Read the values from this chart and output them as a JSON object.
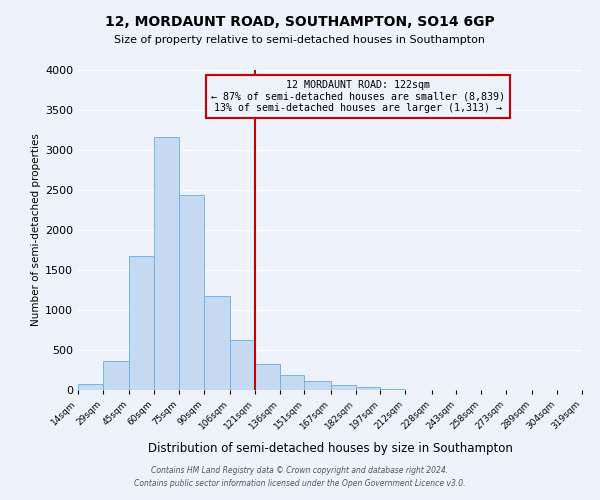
{
  "title": "12, MORDAUNT ROAD, SOUTHAMPTON, SO14 6GP",
  "subtitle": "Size of property relative to semi-detached houses in Southampton",
  "xlabel": "Distribution of semi-detached houses by size in Southampton",
  "ylabel": "Number of semi-detached properties",
  "bin_labels": [
    "14sqm",
    "29sqm",
    "45sqm",
    "60sqm",
    "75sqm",
    "90sqm",
    "106sqm",
    "121sqm",
    "136sqm",
    "151sqm",
    "167sqm",
    "182sqm",
    "197sqm",
    "212sqm",
    "228sqm",
    "243sqm",
    "258sqm",
    "273sqm",
    "289sqm",
    "304sqm",
    "319sqm"
  ],
  "bar_heights": [
    75,
    360,
    1680,
    3160,
    2440,
    1170,
    630,
    330,
    185,
    110,
    60,
    40,
    15,
    5,
    2,
    1,
    0,
    0,
    0,
    0
  ],
  "bar_color": "#c5d9f0",
  "bar_edge_color": "#6aaee8",
  "vline_x": 121,
  "annotation_title": "12 MORDAUNT ROAD: 122sqm",
  "annotation_line1": "← 87% of semi-detached houses are smaller (8,839)",
  "annotation_line2": "13% of semi-detached houses are larger (1,313) →",
  "vline_color": "#cc0000",
  "box_edge_color": "#cc0000",
  "ylim": [
    0,
    4000
  ],
  "yticks": [
    0,
    500,
    1000,
    1500,
    2000,
    2500,
    3000,
    3500,
    4000
  ],
  "footer1": "Contains HM Land Registry data © Crown copyright and database right 2024.",
  "footer2": "Contains public sector information licensed under the Open Government Licence v3.0.",
  "bg_color": "#eef2fa",
  "grid_color": "#ffffff"
}
